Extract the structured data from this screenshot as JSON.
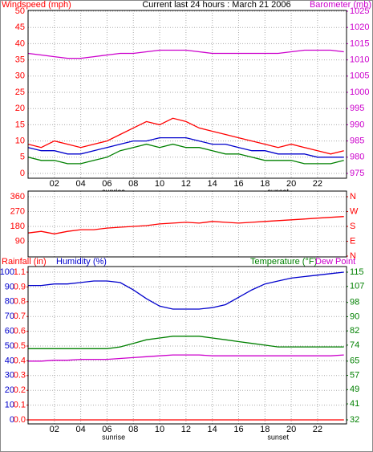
{
  "chart_data": [
    {
      "type": "line",
      "title": "Current last 24 hours : March 21 2006",
      "ylabel": "Windspeed (mph)",
      "y2label": "Barometer (mb)",
      "ycolor": "#ff0000",
      "y2color": "#cc00cc",
      "grid": true,
      "xlim": [
        0,
        24.2
      ],
      "xticks": [
        {
          "value": 2,
          "label": "02"
        },
        {
          "value": 4,
          "label": "04"
        },
        {
          "value": 6,
          "label": "06"
        },
        {
          "value": 8,
          "label": "08"
        },
        {
          "value": 10,
          "label": "10"
        },
        {
          "value": 12,
          "label": "12"
        },
        {
          "value": 14,
          "label": "14"
        },
        {
          "value": 16,
          "label": "16"
        },
        {
          "value": 18,
          "label": "18"
        },
        {
          "value": 20,
          "label": "20"
        },
        {
          "value": 22,
          "label": "22"
        }
      ],
      "ylim": [
        0,
        50
      ],
      "yticks": [
        0,
        5,
        10,
        15,
        20,
        25,
        30,
        35,
        40,
        45,
        50
      ],
      "y2lim": [
        975,
        1025
      ],
      "y2ticks": [
        975,
        980,
        985,
        990,
        995,
        1000,
        1005,
        1010,
        1015,
        1020,
        1025
      ],
      "annotations": [
        {
          "text": "sunrise",
          "x": 6.5
        },
        {
          "text": "sunset",
          "x": 19
        }
      ],
      "x": [
        0,
        1,
        2,
        3,
        4,
        5,
        6,
        7,
        8,
        9,
        10,
        11,
        12,
        13,
        14,
        15,
        16,
        17,
        18,
        19,
        20,
        21,
        22,
        23,
        24
      ],
      "series": [
        {
          "color": "#ff0000",
          "values": [
            9,
            8,
            10,
            9,
            8,
            9,
            10,
            12,
            14,
            16,
            15,
            17,
            16,
            14,
            13,
            12,
            11,
            10,
            9,
            8,
            9,
            8,
            7,
            6,
            7
          ]
        },
        {
          "color": "#008000",
          "values": [
            5,
            4,
            4,
            3,
            3,
            4,
            5,
            7,
            8,
            9,
            8,
            9,
            8,
            8,
            7,
            6,
            6,
            5,
            4,
            4,
            4,
            3,
            3,
            3,
            4
          ]
        },
        {
          "color": "#0000cc",
          "values": [
            8,
            7,
            7,
            6,
            6,
            7,
            8,
            9,
            10,
            10,
            11,
            11,
            11,
            10,
            9,
            9,
            8,
            7,
            7,
            6,
            6,
            6,
            5,
            5,
            5
          ]
        },
        {
          "color": "#cc00cc",
          "axis": "y2",
          "values": [
            1012,
            1011.5,
            1011,
            1010.5,
            1010.5,
            1011,
            1011.5,
            1012,
            1012,
            1012.5,
            1013,
            1013,
            1013,
            1012.5,
            1012,
            1012,
            1012,
            1012,
            1012,
            1012,
            1012.5,
            1013,
            1013,
            1013,
            1012.5
          ]
        }
      ]
    },
    {
      "type": "line",
      "ycolor": "#ff0000",
      "y2color": "#ff0000",
      "grid": true,
      "xlim": [
        0,
        24.2
      ],
      "ylim": [
        0,
        360
      ],
      "yticks": [
        90,
        180,
        270,
        360
      ],
      "y2lim": [
        0,
        360
      ],
      "y2ticks": [
        {
          "value": 0,
          "label": "N"
        },
        {
          "value": 90,
          "label": "E"
        },
        {
          "value": 180,
          "label": "S"
        },
        {
          "value": 270,
          "label": "W"
        },
        {
          "value": 360,
          "label": "N"
        }
      ],
      "x": [
        0,
        1,
        2,
        3,
        4,
        5,
        6,
        7,
        8,
        9,
        10,
        11,
        12,
        13,
        14,
        15,
        16,
        17,
        18,
        19,
        20,
        21,
        22,
        23,
        24
      ],
      "series": [
        {
          "color": "#ff0000",
          "values": [
            140,
            150,
            135,
            150,
            160,
            160,
            170,
            175,
            180,
            185,
            195,
            200,
            205,
            200,
            210,
            205,
            200,
            205,
            210,
            215,
            220,
            225,
            230,
            235,
            240
          ]
        }
      ]
    },
    {
      "type": "line",
      "grid": true,
      "labels": [
        {
          "text": "Rainfall (in)",
          "color": "#ff0000"
        },
        {
          "text": "Humidity (%)",
          "color": "#0000cc"
        },
        {
          "text": "Temperature (°F)",
          "color": "#008000"
        },
        {
          "text": "Dew Point",
          "color": "#cc00cc"
        }
      ],
      "ycolor": "#0000cc",
      "y2color": "#008000",
      "y3color": "#ff0000",
      "xlim": [
        0,
        24.2
      ],
      "xticks": [
        {
          "value": 2,
          "label": "02"
        },
        {
          "value": 4,
          "label": "04"
        },
        {
          "value": 6,
          "label": "06"
        },
        {
          "value": 8,
          "label": "08"
        },
        {
          "value": 10,
          "label": "10"
        },
        {
          "value": 12,
          "label": "12"
        },
        {
          "value": 14,
          "label": "14"
        },
        {
          "value": 16,
          "label": "16"
        },
        {
          "value": 18,
          "label": "18"
        },
        {
          "value": 20,
          "label": "20"
        },
        {
          "value": 22,
          "label": "22"
        }
      ],
      "ylim": [
        0,
        100
      ],
      "yticks": [
        0,
        10,
        20,
        30,
        40,
        50,
        60,
        70,
        80,
        90,
        100
      ],
      "y3lim": [
        0,
        1
      ],
      "y3ticks": [
        {
          "value": 0,
          "label": "0.0"
        },
        0.1,
        0.2,
        0.3,
        0.4,
        0.5,
        0.6,
        0.7,
        0.8,
        0.9,
        {
          "value": 1,
          "label": "1.1"
        }
      ],
      "y2lim": [
        32,
        115
      ],
      "y2ticks": [
        32,
        41,
        49,
        57,
        65,
        74,
        82,
        90,
        98,
        107,
        115
      ],
      "annotations": [
        {
          "text": "sunrise",
          "x": 6.5
        },
        {
          "text": "sunset",
          "x": 19
        }
      ],
      "x": [
        0,
        1,
        2,
        3,
        4,
        5,
        6,
        7,
        8,
        9,
        10,
        11,
        12,
        13,
        14,
        15,
        16,
        17,
        18,
        19,
        20,
        21,
        22,
        23,
        24
      ],
      "series": [
        {
          "color": "#ff0000",
          "axis": "y3",
          "values": [
            0,
            0,
            0,
            0,
            0,
            0,
            0,
            0,
            0,
            0,
            0,
            0,
            0,
            0,
            0,
            0,
            0,
            0,
            0,
            0,
            0,
            0,
            0,
            0,
            0
          ]
        },
        {
          "color": "#0000cc",
          "values": [
            91,
            91,
            92,
            92,
            93,
            94,
            94,
            93,
            88,
            82,
            77,
            75,
            75,
            75,
            76,
            78,
            83,
            88,
            92,
            94,
            96,
            97,
            98,
            99,
            100
          ]
        },
        {
          "color": "#008000",
          "axis": "y2",
          "values": [
            72,
            72,
            72,
            72,
            72,
            72,
            72,
            73,
            75,
            77,
            78,
            79,
            79,
            79,
            78,
            77,
            76,
            75,
            74,
            73,
            73,
            73,
            73,
            73,
            73
          ]
        },
        {
          "color": "#cc00cc",
          "axis": "y2",
          "values": [
            65,
            65,
            65.5,
            65.5,
            66,
            66,
            66,
            66.5,
            67,
            67.5,
            68,
            68.5,
            68.5,
            68.5,
            68,
            68,
            68,
            68,
            68,
            68,
            68,
            68,
            68,
            68,
            68.5
          ]
        }
      ]
    }
  ]
}
